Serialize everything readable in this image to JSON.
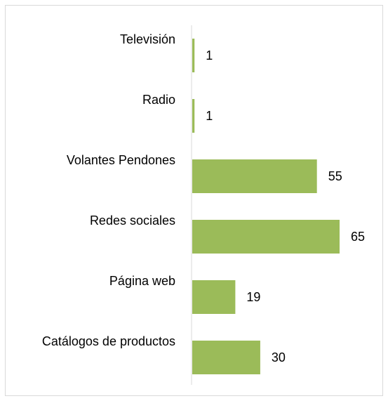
{
  "chart_data": {
    "type": "bar",
    "orientation": "horizontal",
    "categories": [
      "Televisión",
      "Radio",
      "Volantes Pendones",
      "Redes sociales",
      "Página web",
      "Catálogos de productos"
    ],
    "values": [
      1,
      1,
      55,
      65,
      19,
      30
    ],
    "xlim": [
      0,
      70
    ],
    "grid": false,
    "legend": "none",
    "colors": {
      "bar": "#9bbb59",
      "axis": "#d9d9d9",
      "text": "#000000"
    }
  }
}
